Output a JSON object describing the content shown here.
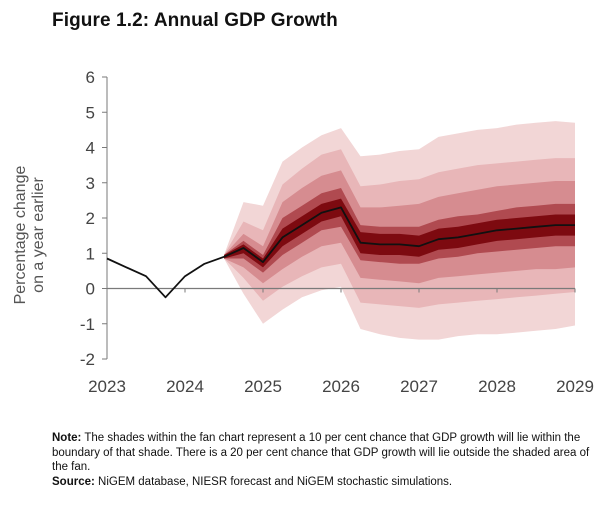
{
  "figure_title": "Figure 1.2: Annual GDP Growth",
  "notes": {
    "note_label": "Note:",
    "note_text": "The shades within the fan chart represent a 10 per cent chance that GDP growth will lie within the boundary of that shade. There is a 20 per cent chance that GDP growth will lie outside the shaded area of the fan.",
    "source_label": "Source:",
    "source_text": "NiGEM database, NIESR forecast and NiGEM stochastic simulations."
  },
  "chart_data": {
    "type": "area",
    "title": "Figure 1.2: Annual GDP Growth",
    "ylabel_lines": [
      "Percentage change",
      "on a year earlier"
    ],
    "xlabel": "",
    "x_ticks": [
      "2023",
      "2024",
      "2025",
      "2026",
      "2027",
      "2028",
      "2029"
    ],
    "y_ticks": [
      "6",
      "5",
      "4",
      "3",
      "2",
      "1",
      "0",
      "-1",
      "-2"
    ],
    "xlim": [
      2023,
      2029
    ],
    "ylim": [
      -2,
      6
    ],
    "grid": false,
    "legend": "none",
    "colors": {
      "central": "#111111",
      "shades": [
        "#f2d6d6",
        "#e8b6b8",
        "#d68c90",
        "#b04a50",
        "#7d0a10"
      ],
      "zero_line": "#7a7a7a",
      "axis": "#7a7a7a"
    },
    "central_projection": {
      "x": [
        "2023Q1",
        "2023Q2",
        "2023Q3",
        "2023Q4",
        "2024Q1",
        "2024Q2",
        "2024Q3",
        "2024Q4",
        "2025Q1",
        "2025Q2",
        "2025Q3",
        "2025Q4",
        "2026Q1",
        "2026Q2",
        "2026Q3",
        "2026Q4",
        "2027Q1",
        "2027Q2",
        "2027Q3",
        "2027Q4",
        "2028Q1",
        "2028Q2",
        "2028Q3",
        "2028Q4",
        "2029Q1"
      ],
      "y": [
        0.85,
        0.6,
        0.35,
        -0.25,
        0.35,
        0.7,
        0.9,
        1.15,
        0.75,
        1.45,
        1.8,
        2.15,
        2.3,
        1.3,
        1.25,
        1.25,
        1.2,
        1.4,
        1.45,
        1.55,
        1.65,
        1.7,
        1.75,
        1.8,
        1.8
      ]
    },
    "fan_x": [
      "2024Q3",
      "2024Q4",
      "2025Q1",
      "2025Q2",
      "2025Q3",
      "2025Q4",
      "2026Q1",
      "2026Q2",
      "2026Q3",
      "2026Q4",
      "2027Q1",
      "2027Q2",
      "2027Q3",
      "2027Q4",
      "2028Q1",
      "2028Q2",
      "2028Q3",
      "2028Q4",
      "2029Q1"
    ],
    "fan_bands": [
      {
        "band": "outer",
        "upper": [
          0.95,
          2.45,
          2.35,
          3.6,
          4.0,
          4.35,
          4.55,
          3.75,
          3.8,
          3.9,
          3.95,
          4.3,
          4.4,
          4.5,
          4.55,
          4.65,
          4.7,
          4.75,
          4.7
        ],
        "lower": [
          0.85,
          -0.15,
          -1.0,
          -0.6,
          -0.25,
          -0.05,
          0.05,
          -1.15,
          -1.3,
          -1.4,
          -1.45,
          -1.45,
          -1.35,
          -1.3,
          -1.3,
          -1.25,
          -1.2,
          -1.15,
          -1.05
        ]
      },
      {
        "band": "second",
        "upper": [
          0.95,
          1.9,
          1.65,
          2.95,
          3.4,
          3.8,
          3.95,
          2.9,
          2.95,
          3.05,
          3.1,
          3.3,
          3.4,
          3.5,
          3.55,
          3.6,
          3.65,
          3.7,
          3.7
        ],
        "lower": [
          0.85,
          0.3,
          -0.35,
          0.05,
          0.35,
          0.6,
          0.7,
          -0.4,
          -0.45,
          -0.5,
          -0.55,
          -0.45,
          -0.4,
          -0.35,
          -0.3,
          -0.25,
          -0.2,
          -0.15,
          -0.1
        ]
      },
      {
        "band": "third",
        "upper": [
          0.95,
          1.55,
          1.2,
          2.45,
          2.85,
          3.2,
          3.35,
          2.3,
          2.3,
          2.35,
          2.4,
          2.6,
          2.7,
          2.8,
          2.9,
          2.95,
          3.0,
          3.05,
          3.05
        ],
        "lower": [
          0.85,
          0.6,
          0.15,
          0.55,
          0.9,
          1.2,
          1.3,
          0.3,
          0.25,
          0.2,
          0.15,
          0.3,
          0.35,
          0.4,
          0.45,
          0.5,
          0.55,
          0.55,
          0.6
        ]
      },
      {
        "band": "fourth",
        "upper": [
          0.95,
          1.35,
          0.95,
          2.0,
          2.35,
          2.7,
          2.85,
          1.8,
          1.75,
          1.75,
          1.75,
          1.95,
          2.05,
          2.1,
          2.2,
          2.3,
          2.35,
          2.4,
          2.4
        ],
        "lower": [
          0.85,
          0.85,
          0.45,
          0.95,
          1.3,
          1.65,
          1.75,
          0.8,
          0.75,
          0.7,
          0.7,
          0.85,
          0.9,
          1.0,
          1.05,
          1.1,
          1.15,
          1.2,
          1.2
        ]
      },
      {
        "band": "central",
        "upper": [
          0.95,
          1.25,
          0.85,
          1.7,
          2.05,
          2.4,
          2.55,
          1.6,
          1.55,
          1.55,
          1.5,
          1.7,
          1.75,
          1.85,
          1.95,
          2.0,
          2.05,
          2.1,
          2.1
        ],
        "lower": [
          0.85,
          1.0,
          0.6,
          1.2,
          1.55,
          1.9,
          2.05,
          1.0,
          0.95,
          0.95,
          0.9,
          1.1,
          1.15,
          1.25,
          1.35,
          1.4,
          1.45,
          1.5,
          1.5
        ]
      }
    ]
  }
}
